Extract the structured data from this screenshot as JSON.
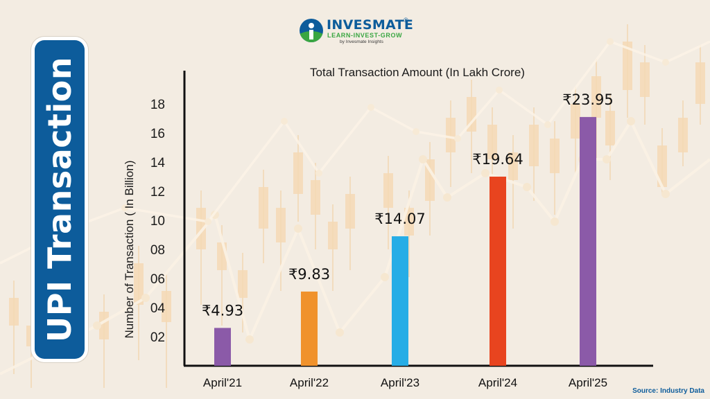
{
  "page": {
    "side_title": "UPI Transaction",
    "source": "Source: Industry Data"
  },
  "logo": {
    "name": "INVESMATE",
    "registered": "®",
    "tagline": "LEARN-INVEST-GROW",
    "subline": "by Invesmate Insights",
    "icon": "invesmate-logo-icon"
  },
  "colors": {
    "brand_blue": "#0d5c9b",
    "brand_green": "#3aa642",
    "axis": "#111111"
  },
  "chart_data": {
    "type": "bar",
    "title": "Total Transaction Amount (In Lakh Crore)",
    "ylabel": "Number of Transaction ( In Billion)",
    "xlabel": "",
    "categories": [
      "April'21",
      "April'22",
      "April'23",
      "April'24",
      "April'25"
    ],
    "values": [
      2.6,
      5.1,
      8.9,
      13.0,
      17.1
    ],
    "data_labels": [
      "₹4.93",
      "₹9.83",
      "₹14.07",
      "₹19.64",
      "₹23.95"
    ],
    "bar_colors": [
      "#8b5aa8",
      "#f0922c",
      "#27ade6",
      "#e8441f",
      "#8b5aa8"
    ],
    "yticks": [
      2,
      4,
      6,
      8,
      10,
      12,
      14,
      16,
      18
    ],
    "ytick_labels": [
      "02",
      "04",
      "06",
      "08",
      "10",
      "12",
      "14",
      "16",
      "18"
    ],
    "ylim": [
      0,
      20
    ],
    "grid": false,
    "legend": "none"
  }
}
